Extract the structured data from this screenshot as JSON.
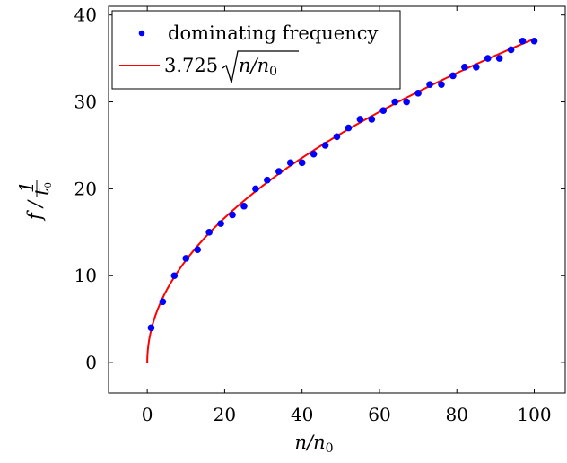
{
  "chart_data": {
    "type": "scatter",
    "xlabel": "n/n0",
    "ylabel": "f / 1/t0",
    "xlim": [
      -10,
      108
    ],
    "ylim": [
      -3.5,
      41
    ],
    "x_ticks": [
      "0",
      "20",
      "40",
      "60",
      "80",
      "100"
    ],
    "y_ticks": [
      "0",
      "10",
      "20",
      "30",
      "40"
    ],
    "grid": false,
    "legend_placement": "top-left",
    "series": [
      {
        "name": "dominating frequency",
        "kind": "scatter",
        "color": "#0000ff",
        "x": [
          1,
          4,
          7,
          10,
          13,
          16,
          19,
          22,
          25,
          28,
          31,
          34,
          37,
          40,
          43,
          46,
          49,
          52,
          55,
          58,
          61,
          64,
          67,
          70,
          73,
          76,
          79,
          82,
          85,
          88,
          91,
          94,
          97,
          100
        ],
        "y": [
          4,
          7,
          10,
          12,
          13,
          15,
          16,
          17,
          18,
          20,
          21,
          22,
          23,
          23,
          24,
          25,
          26,
          27,
          28,
          28,
          29,
          30,
          30,
          31,
          32,
          32,
          33,
          34,
          34,
          35,
          35,
          36,
          37,
          37
        ]
      },
      {
        "name": "3.725√(n/n0)",
        "kind": "line",
        "color": "#ff0000",
        "coefficient": 3.725,
        "x_range": [
          0,
          100
        ]
      }
    ],
    "legend": {
      "entry1": "dominating frequency",
      "entry2_coef": "3.725",
      "entry2_expr": "n/n",
      "entry2_sub": "0"
    },
    "labels": {
      "x_main": "n/n",
      "x_sub": "0",
      "y_f": "f",
      "y_slash": "/",
      "y_num": "1",
      "y_den": "t",
      "y_den_sub": "0"
    }
  }
}
